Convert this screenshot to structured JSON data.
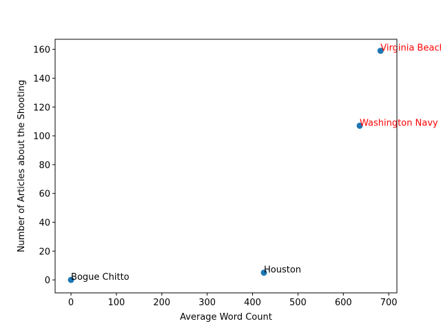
{
  "chart_data": {
    "type": "scatter",
    "title": "",
    "xlabel": "Average Word Count",
    "ylabel": "Number of Articles about the Shooting",
    "xlim": [
      -35,
      718
    ],
    "ylim": [
      -9,
      167
    ],
    "xticks": [
      0,
      100,
      200,
      300,
      400,
      500,
      600,
      700
    ],
    "yticks": [
      0,
      20,
      40,
      60,
      80,
      100,
      120,
      140,
      160
    ],
    "grid": false,
    "marker_color": "#1f77b4",
    "points": [
      {
        "label": "Bogue Chitto",
        "x": 0,
        "y": 0,
        "label_color": "#000000"
      },
      {
        "label": "Houston",
        "x": 425,
        "y": 5,
        "label_color": "#000000"
      },
      {
        "label": "Washington Navy Yard",
        "x": 636,
        "y": 107,
        "label_color": "#ff0000"
      },
      {
        "label": "Virginia Beach",
        "x": 682,
        "y": 159,
        "label_color": "#ff0000"
      }
    ]
  }
}
